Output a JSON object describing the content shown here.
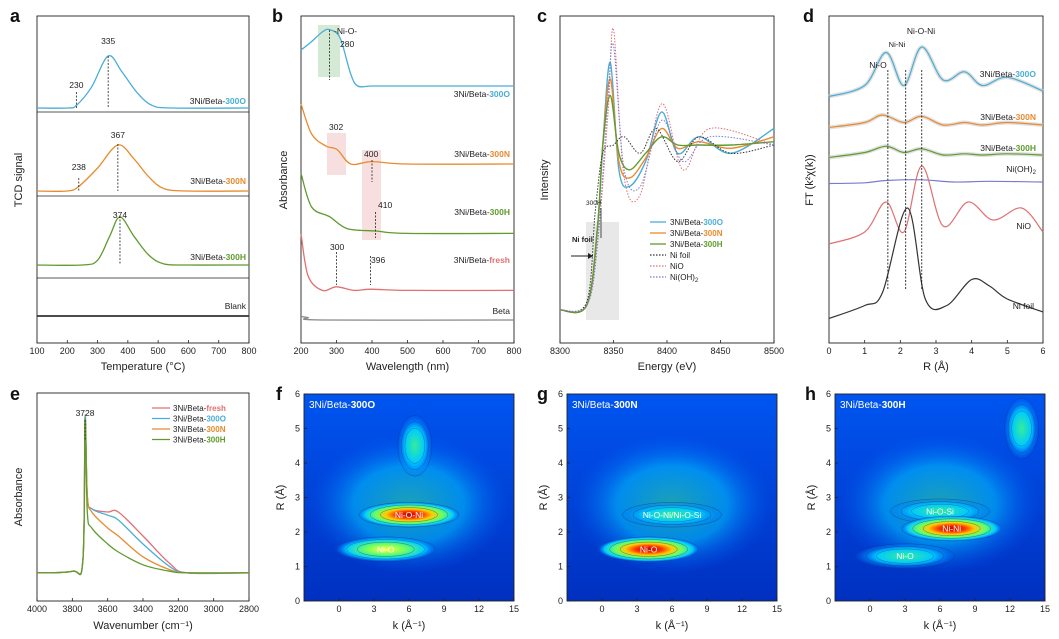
{
  "panels": {
    "a": {
      "letter": "a",
      "ylabel": "TCD signal",
      "xlabel": "Temperature (°C)",
      "xticks": [
        "100",
        "200",
        "300",
        "400",
        "500",
        "600",
        "700",
        "800"
      ],
      "curves": [
        {
          "pre": "3Ni/Beta-",
          "suf": "300O",
          "color": "#4aaed6",
          "peak_label": "335",
          "shoulder_label": "230"
        },
        {
          "pre": "3Ni/Beta-",
          "suf": "300N",
          "color": "#e88b2e",
          "peak_label": "367",
          "shoulder_label": "238"
        },
        {
          "pre": "3Ni/Beta-",
          "suf": "300H",
          "color": "#5f9b2e",
          "peak_label": "374"
        },
        {
          "label": "Blank",
          "color": "#333333"
        }
      ]
    },
    "b": {
      "letter": "b",
      "ylabel": "Absorbance",
      "xlabel": "Wavelength (nm)",
      "xticks": [
        "200",
        "300",
        "400",
        "500",
        "600",
        "700",
        "800"
      ],
      "annotations": [
        "-Ni-O-",
        "280",
        "302",
        "400",
        "410",
        "300",
        "396"
      ],
      "curves": [
        {
          "pre": "3Ni/Beta-",
          "suf": "300O",
          "color": "#4aaed6"
        },
        {
          "pre": "3Ni/Beta-",
          "suf": "300N",
          "color": "#e88b2e"
        },
        {
          "pre": "3Ni/Beta-",
          "suf": "300H",
          "color": "#5f9b2e"
        },
        {
          "pre": "3Ni/Beta-",
          "suf": "fresh",
          "color": "#e07070"
        },
        {
          "label": "Beta",
          "color": "#888888"
        }
      ]
    },
    "c": {
      "letter": "c",
      "ylabel": "Intensity",
      "xlabel": "Energy (eV)",
      "xticks": [
        "8300",
        "8350",
        "8400",
        "8450",
        "8500"
      ],
      "annotations": [
        "300H",
        "Ni foil"
      ],
      "legend": [
        {
          "pre": "3Ni/Beta-",
          "suf": "300O",
          "color": "#4aaed6",
          "style": "solid"
        },
        {
          "pre": "3Ni/Beta-",
          "suf": "300N",
          "color": "#e88b2e",
          "style": "solid"
        },
        {
          "pre": "3Ni/Beta-",
          "suf": "300H",
          "color": "#5f9b2e",
          "style": "solid"
        },
        {
          "label": "Ni foil",
          "color": "#333333",
          "style": "dot"
        },
        {
          "label": "NiO",
          "color": "#e07070",
          "style": "dot"
        },
        {
          "label": "Ni(OH)",
          "sub": "2",
          "color": "#7a7ad0",
          "style": "dot"
        }
      ]
    },
    "d": {
      "letter": "d",
      "ylabel": "FT (k²χ(k))",
      "xlabel": "R (Å)",
      "xticks": [
        "0",
        "1",
        "2",
        "3",
        "4",
        "5",
        "6"
      ],
      "annotations": [
        "Ni-O",
        "Ni-Ni",
        "Ni-O-Ni"
      ],
      "curves": [
        {
          "pre": "3Ni/Beta-",
          "suf": "300O",
          "color": "#4aaed6"
        },
        {
          "pre": "3Ni/Beta-",
          "suf": "300N",
          "color": "#e88b2e"
        },
        {
          "pre": "3Ni/Beta-",
          "suf": "300H",
          "color": "#5f9b2e"
        },
        {
          "label": "Ni(OH)",
          "sub": "2",
          "color": "#7a7ad0"
        },
        {
          "label": "NiO",
          "color": "#e07070"
        },
        {
          "label": "Ni foil",
          "color": "#333333"
        }
      ]
    },
    "e": {
      "letter": "e",
      "ylabel": "Absorbance",
      "xlabel": "Wavenumber (cm⁻¹)",
      "xticks": [
        "4000",
        "3800",
        "3600",
        "3400",
        "3200",
        "3000",
        "2800"
      ],
      "peak_label": "3728",
      "legend": [
        {
          "pre": "3Ni/Beta-",
          "suf": "fresh",
          "color": "#e07070"
        },
        {
          "pre": "3Ni/Beta-",
          "suf": "300O",
          "color": "#4aaed6"
        },
        {
          "pre": "3Ni/Beta-",
          "suf": "300N",
          "color": "#e88b2e"
        },
        {
          "pre": "3Ni/Beta-",
          "suf": "300H",
          "color": "#5f9b2e"
        }
      ]
    },
    "f": {
      "letter": "f",
      "title_pre": "3Ni/Beta-",
      "title_suf": "300O",
      "xlabel": "k (Å⁻¹)",
      "ylabel": "R (Å)",
      "xticks": [
        "0",
        "3",
        "6",
        "9",
        "12",
        "15"
      ],
      "yticks": [
        "0",
        "1",
        "2",
        "3",
        "4",
        "5",
        "6"
      ],
      "labels": [
        "Ni-O-Ni",
        "Ni-O"
      ]
    },
    "g": {
      "letter": "g",
      "title_pre": "3Ni/Beta-",
      "title_suf": "300N",
      "xlabel": "k (Å⁻¹)",
      "ylabel": "R (Å)",
      "xticks": [
        "0",
        "3",
        "6",
        "9",
        "12",
        "15"
      ],
      "yticks": [
        "0",
        "1",
        "2",
        "3",
        "4",
        "5",
        "6"
      ],
      "labels": [
        "Ni-O-Ni/Ni-O-Si",
        "Ni-O"
      ]
    },
    "h": {
      "letter": "h",
      "title_pre": "3Ni/Beta-",
      "title_suf": "300H",
      "xlabel": "k (Å⁻¹)",
      "ylabel": "R (Å)",
      "xticks": [
        "0",
        "3",
        "6",
        "9",
        "12",
        "15"
      ],
      "yticks": [
        "0",
        "1",
        "2",
        "3",
        "4",
        "5",
        "6"
      ],
      "labels": [
        "Ni-O-Si",
        "Ni-Ni",
        "Ni-O"
      ]
    }
  },
  "chart_data": [
    {
      "type": "line",
      "panel": "a",
      "xlabel": "Temperature (°C)",
      "ylabel": "TCD signal",
      "xlim": [
        100,
        800
      ],
      "series": [
        {
          "name": "3Ni/Beta-300O",
          "x": [
            100,
            200,
            230,
            280,
            335,
            380,
            430,
            480,
            550,
            800
          ],
          "y": [
            0,
            0,
            0.05,
            0.4,
            1.0,
            0.7,
            0.3,
            0.05,
            0,
            0
          ]
        },
        {
          "name": "3Ni/Beta-300N",
          "x": [
            100,
            200,
            238,
            300,
            367,
            420,
            470,
            520,
            600,
            800
          ],
          "y": [
            0,
            0,
            0.1,
            0.5,
            1.0,
            0.7,
            0.3,
            0.05,
            0,
            0
          ]
        },
        {
          "name": "3Ni/Beta-300H",
          "x": [
            100,
            250,
            300,
            340,
            374,
            420,
            470,
            520,
            600,
            800
          ],
          "y": [
            0,
            0,
            0.1,
            0.6,
            1.0,
            0.6,
            0.2,
            0.02,
            0,
            0
          ]
        },
        {
          "name": "Blank",
          "x": [
            100,
            800
          ],
          "y": [
            0,
            0
          ]
        }
      ]
    },
    {
      "type": "line",
      "panel": "b",
      "xlabel": "Wavelength (nm)",
      "ylabel": "Absorbance",
      "xlim": [
        200,
        800
      ],
      "series": [
        {
          "name": "3Ni/Beta-300O",
          "x": [
            200,
            230,
            260,
            280,
            310,
            340,
            360,
            400,
            500,
            800
          ],
          "y": [
            0.75,
            0.82,
            0.9,
            0.92,
            0.85,
            0.55,
            0.45,
            0.45,
            0.45,
            0.45
          ]
        },
        {
          "name": "3Ni/Beta-300N",
          "x": [
            200,
            230,
            270,
            302,
            340,
            400,
            500,
            800
          ],
          "y": [
            0.8,
            0.55,
            0.45,
            0.42,
            0.3,
            0.32,
            0.3,
            0.3
          ]
        },
        {
          "name": "3Ni/Beta-300H",
          "x": [
            200,
            230,
            280,
            330,
            410,
            500,
            800
          ],
          "y": [
            0.68,
            0.4,
            0.32,
            0.22,
            0.2,
            0.18,
            0.18
          ]
        },
        {
          "name": "3Ni/Beta-fresh",
          "x": [
            200,
            220,
            260,
            300,
            350,
            396,
            500,
            800
          ],
          "y": [
            0.55,
            0.2,
            0.08,
            0.11,
            0.08,
            0.09,
            0.08,
            0.08
          ]
        },
        {
          "name": "Beta",
          "x": [
            200,
            220,
            260,
            800
          ],
          "y": [
            0.03,
            0.02,
            0.0,
            0.0
          ]
        }
      ]
    },
    {
      "type": "line",
      "panel": "c",
      "xlabel": "Energy (eV)",
      "ylabel": "Intensity",
      "xlim": [
        8300,
        8500
      ],
      "series": [
        {
          "name": "3Ni/Beta-300O",
          "x": [
            8300,
            8325,
            8335,
            8340,
            8347,
            8355,
            8365,
            8380,
            8395,
            8410,
            8430,
            8460,
            8500
          ],
          "y": [
            0,
            0.03,
            0.5,
            1.0,
            1.5,
            0.85,
            0.75,
            0.9,
            1.2,
            0.95,
            1.05,
            0.95,
            1.1
          ]
        },
        {
          "name": "3Ni/Beta-300N",
          "x": [
            8300,
            8325,
            8335,
            8340,
            8347,
            8355,
            8365,
            8380,
            8395,
            8410,
            8430,
            8460,
            8500
          ],
          "y": [
            0,
            0.03,
            0.5,
            1.0,
            1.4,
            0.9,
            0.8,
            0.92,
            1.1,
            0.98,
            1.02,
            0.98,
            1.05
          ]
        },
        {
          "name": "3Ni/Beta-300H",
          "x": [
            8300,
            8325,
            8335,
            8340,
            8347,
            8355,
            8365,
            8380,
            8395,
            8410,
            8430,
            8460,
            8500
          ],
          "y": [
            0,
            0.03,
            0.5,
            1.0,
            1.3,
            0.95,
            0.85,
            0.95,
            1.05,
            1.0,
            1.0,
            1.0,
            1.02
          ]
        },
        {
          "name": "Ni foil",
          "x": [
            8300,
            8325,
            8333,
            8340,
            8350,
            8360,
            8375,
            8390,
            8410,
            8430,
            8460,
            8500
          ],
          "y": [
            0,
            0.05,
            0.6,
            0.95,
            1.0,
            1.05,
            0.95,
            1.1,
            0.9,
            1.05,
            0.95,
            1.0
          ]
        },
        {
          "name": "NiO",
          "x": [
            8300,
            8325,
            8335,
            8345,
            8350,
            8360,
            8375,
            8395,
            8415,
            8440,
            8500
          ],
          "y": [
            0,
            0.03,
            0.4,
            1.2,
            1.7,
            0.8,
            0.7,
            1.25,
            0.85,
            1.1,
            1.0
          ]
        },
        {
          "name": "Ni(OH)2",
          "x": [
            8300,
            8325,
            8335,
            8345,
            8350,
            8360,
            8375,
            8395,
            8415,
            8440,
            8500
          ],
          "y": [
            0,
            0.03,
            0.4,
            1.3,
            1.6,
            0.85,
            0.75,
            1.15,
            0.9,
            1.05,
            1.0
          ]
        }
      ]
    },
    {
      "type": "line",
      "panel": "d",
      "xlabel": "R (Å)",
      "ylabel": "FT (k²χ(k))",
      "xlim": [
        0,
        6
      ],
      "series": [
        {
          "name": "3Ni/Beta-300O",
          "x": [
            0,
            1,
            1.6,
            2.1,
            2.6,
            3.2,
            3.8,
            4.3,
            5,
            6
          ],
          "y": [
            0.1,
            0.3,
            0.9,
            0.3,
            1.0,
            0.4,
            0.55,
            0.3,
            0.45,
            0.2
          ]
        },
        {
          "name": "3Ni/Beta-300N",
          "x": [
            0,
            1,
            1.5,
            2.1,
            2.6,
            3.2,
            3.8,
            4.3,
            5,
            6
          ],
          "y": [
            0.1,
            0.3,
            0.6,
            0.3,
            0.55,
            0.2,
            0.3,
            0.2,
            0.3,
            0.2
          ]
        },
        {
          "name": "3Ni/Beta-300H",
          "x": [
            0,
            1,
            1.6,
            2.1,
            2.6,
            3.2,
            3.8,
            4.3,
            5,
            6
          ],
          "y": [
            0.1,
            0.3,
            0.55,
            0.3,
            0.45,
            0.2,
            0.25,
            0.2,
            0.25,
            0.2
          ]
        },
        {
          "name": "Ni(OH)2",
          "x": [
            0,
            1,
            1.6,
            2.6,
            3.5,
            4.5,
            6
          ],
          "y": [
            0.1,
            0.15,
            0.3,
            0.35,
            0.2,
            0.25,
            0.2
          ]
        },
        {
          "name": "NiO",
          "x": [
            0,
            1,
            1.6,
            2.1,
            2.6,
            3.2,
            3.9,
            4.6,
            5.4,
            6
          ],
          "y": [
            0.1,
            0.3,
            0.8,
            0.3,
            1.4,
            0.4,
            0.8,
            0.5,
            0.7,
            0.3
          ]
        },
        {
          "name": "Ni foil",
          "x": [
            0,
            1,
            1.5,
            2.2,
            2.7,
            3.3,
            4.0,
            4.5,
            5,
            6
          ],
          "y": [
            0.1,
            0.3,
            0.5,
            1.8,
            0.4,
            0.3,
            0.7,
            0.6,
            0.4,
            0.2
          ]
        }
      ]
    },
    {
      "type": "line",
      "panel": "e",
      "xlabel": "Wavenumber (cm⁻¹)",
      "ylabel": "Absorbance",
      "xlim": [
        4000,
        2800
      ],
      "series": [
        {
          "name": "3Ni/Beta-fresh",
          "x": [
            4000,
            3800,
            3740,
            3728,
            3715,
            3690,
            3600,
            3540,
            3400,
            3250,
            3150,
            2800
          ],
          "y": [
            0.02,
            0.03,
            0.1,
            1.0,
            0.5,
            0.42,
            0.4,
            0.4,
            0.25,
            0.08,
            0.02,
            0.02
          ]
        },
        {
          "name": "3Ni/Beta-300O",
          "x": [
            4000,
            3800,
            3740,
            3728,
            3715,
            3690,
            3600,
            3540,
            3400,
            3250,
            3150,
            2800
          ],
          "y": [
            0.02,
            0.03,
            0.1,
            1.0,
            0.5,
            0.42,
            0.38,
            0.35,
            0.2,
            0.06,
            0.02,
            0.02
          ]
        },
        {
          "name": "3Ni/Beta-300N",
          "x": [
            4000,
            3800,
            3740,
            3728,
            3715,
            3690,
            3600,
            3540,
            3400,
            3250,
            3150,
            2800
          ],
          "y": [
            0.02,
            0.03,
            0.1,
            0.95,
            0.5,
            0.4,
            0.3,
            0.25,
            0.12,
            0.04,
            0.02,
            0.02
          ]
        },
        {
          "name": "3Ni/Beta-300H",
          "x": [
            4000,
            3800,
            3740,
            3728,
            3715,
            3690,
            3600,
            3540,
            3400,
            3250,
            3150,
            2800
          ],
          "y": [
            0.02,
            0.03,
            0.1,
            0.98,
            0.4,
            0.3,
            0.2,
            0.15,
            0.07,
            0.03,
            0.02,
            0.02
          ]
        }
      ]
    },
    {
      "type": "heatmap",
      "panel": "f",
      "title": "3Ni/Beta-300O",
      "xlabel": "k (Å⁻¹)",
      "ylabel": "R (Å)",
      "xlim": [
        -3,
        15
      ],
      "ylim": [
        0,
        6
      ],
      "blobs": [
        {
          "label": "Ni-O-Ni",
          "k": 6,
          "R": 2.5,
          "intensity": 1.0
        },
        {
          "label": "Ni-O",
          "k": 4,
          "R": 1.5,
          "intensity": 0.6
        },
        {
          "label": "",
          "k": 6.5,
          "R": 4.5,
          "intensity": 0.5
        }
      ]
    },
    {
      "type": "heatmap",
      "panel": "g",
      "title": "3Ni/Beta-300N",
      "xlabel": "k (Å⁻¹)",
      "ylabel": "R (Å)",
      "xlim": [
        -3,
        15
      ],
      "ylim": [
        0,
        6
      ],
      "blobs": [
        {
          "label": "Ni-O-Ni/Ni-O-Si",
          "k": 6,
          "R": 2.5,
          "intensity": 0.35
        },
        {
          "label": "Ni-O",
          "k": 4,
          "R": 1.5,
          "intensity": 1.0
        }
      ]
    },
    {
      "type": "heatmap",
      "panel": "h",
      "title": "3Ni/Beta-300H",
      "xlabel": "k (Å⁻¹)",
      "ylabel": "R (Å)",
      "xlim": [
        -3,
        15
      ],
      "ylim": [
        0,
        6
      ],
      "blobs": [
        {
          "label": "Ni-O-Si",
          "k": 6,
          "R": 2.6,
          "intensity": 0.4
        },
        {
          "label": "Ni-Ni",
          "k": 7,
          "R": 2.1,
          "intensity": 1.0
        },
        {
          "label": "Ni-O",
          "k": 3,
          "R": 1.3,
          "intensity": 0.5
        },
        {
          "label": "",
          "k": 13,
          "R": 5,
          "intensity": 0.45
        }
      ]
    }
  ]
}
